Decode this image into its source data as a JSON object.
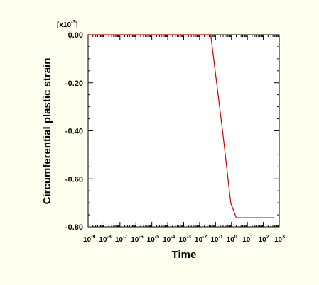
{
  "chart_data": {
    "type": "line",
    "title": "",
    "xlabel": "Time",
    "ylabel": "Circumferential plastic strain",
    "x_scale": "log",
    "xlim": [
      1e-09,
      1000
    ],
    "ylim": [
      -0.8,
      0.0
    ],
    "y_multiplier": {
      "prefix": "[x10",
      "exponent": "-3",
      "suffix": "]"
    },
    "ytick_labels": [
      "0.00",
      "-0.20",
      "-0.40",
      "-0.60",
      "-0.80"
    ],
    "ytick_values": [
      0.0,
      -0.2,
      -0.4,
      -0.6,
      -0.8
    ],
    "xtick_exponents": [
      "-9",
      "-8",
      "-7",
      "-6",
      "-5",
      "-4",
      "-3",
      "-2",
      "-1",
      "0",
      "1",
      "2",
      "3"
    ],
    "xtick_base": "10",
    "grid": false,
    "legend": "none",
    "series": [
      {
        "color": "#cc0000",
        "x": [
          1e-09,
          0.05,
          0.3,
          0.9,
          2.0,
          500
        ],
        "y": [
          0.0,
          0.0,
          -0.42,
          -0.7,
          -0.762,
          -0.762
        ]
      }
    ]
  }
}
